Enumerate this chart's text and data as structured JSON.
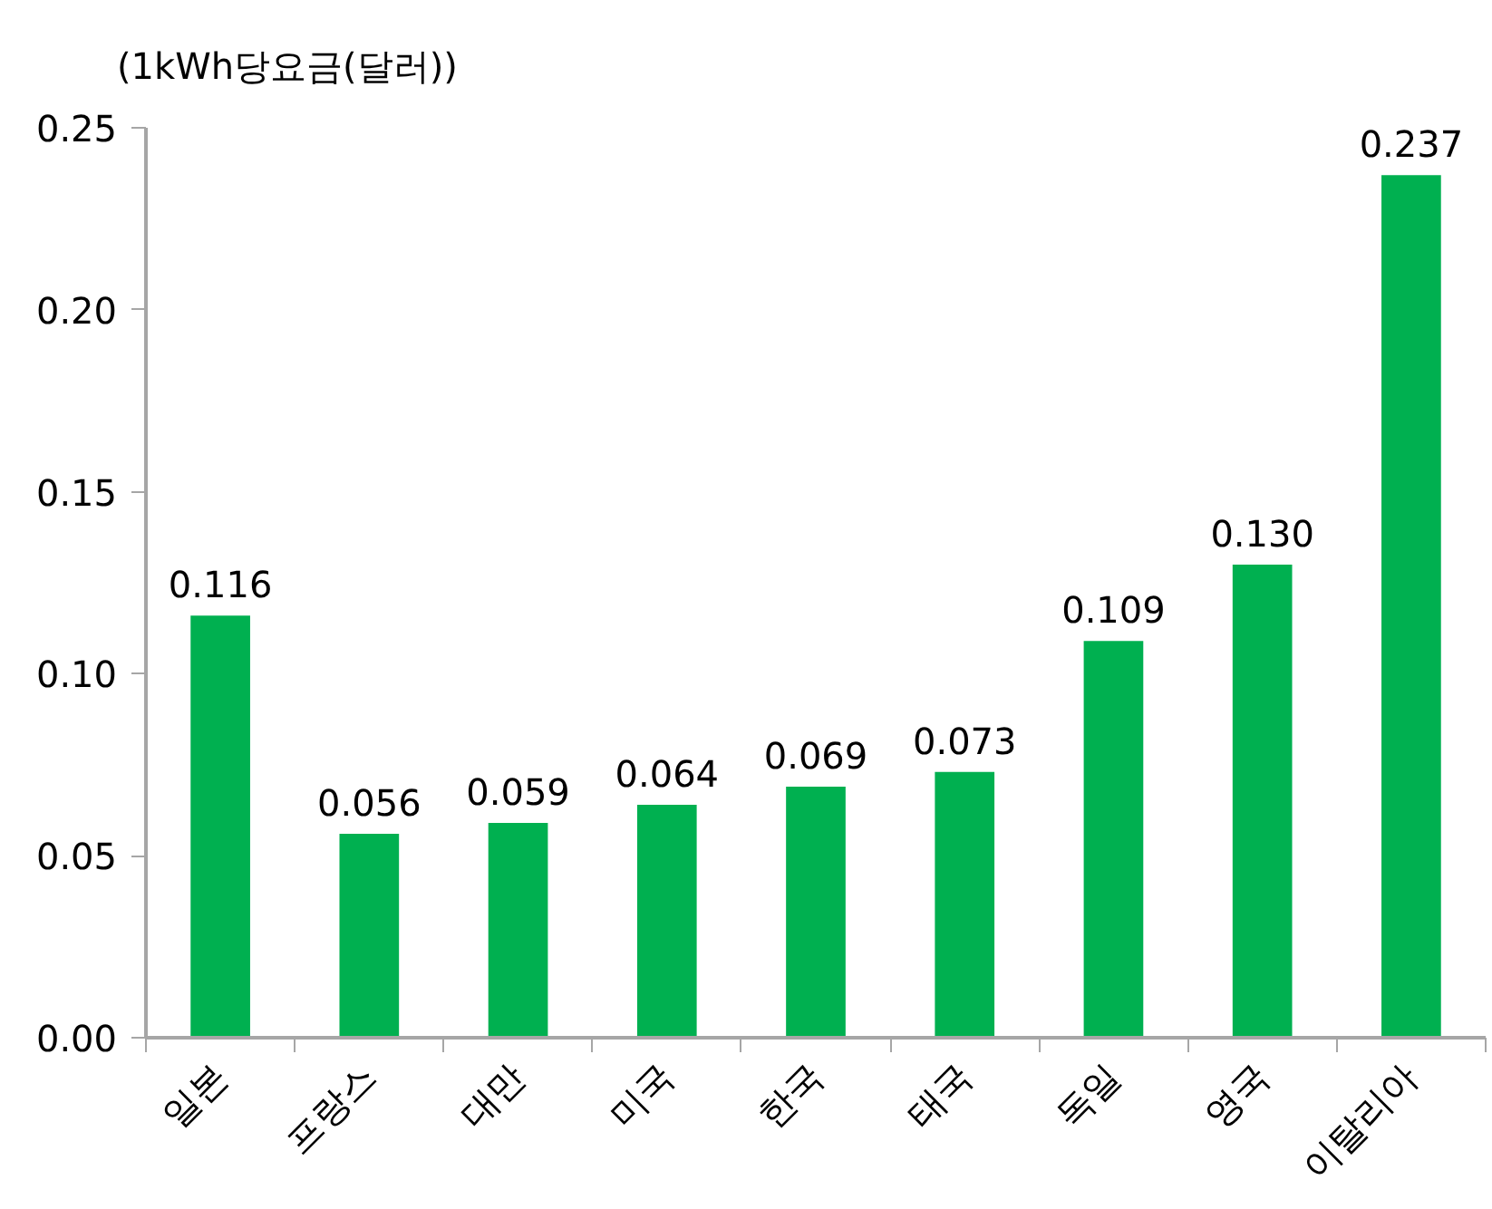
{
  "chart_data": {
    "type": "bar",
    "ylabel": "(1kWh당요금(달러))",
    "categories": [
      "일본",
      "프랑스",
      "대만",
      "미국",
      "한국",
      "태국",
      "독일",
      "영국",
      "이탈리아"
    ],
    "values": [
      0.116,
      0.056,
      0.059,
      0.064,
      0.069,
      0.073,
      0.109,
      0.13,
      0.237
    ],
    "value_labels": [
      "0.116",
      "0.056",
      "0.059",
      "0.064",
      "0.069",
      "0.073",
      "0.109",
      "0.130",
      "0.237"
    ],
    "color": "#00b050",
    "ylim": [
      0,
      0.25
    ],
    "yticks": [
      {
        "value": 0,
        "label": "0.00"
      },
      {
        "value": 0.05,
        "label": "0.05"
      },
      {
        "value": 0.1,
        "label": "0.10"
      },
      {
        "value": 0.15,
        "label": "0.15"
      },
      {
        "value": 0.2,
        "label": "0.20"
      },
      {
        "value": 0.25,
        "label": "0.25"
      }
    ],
    "grid": false
  }
}
